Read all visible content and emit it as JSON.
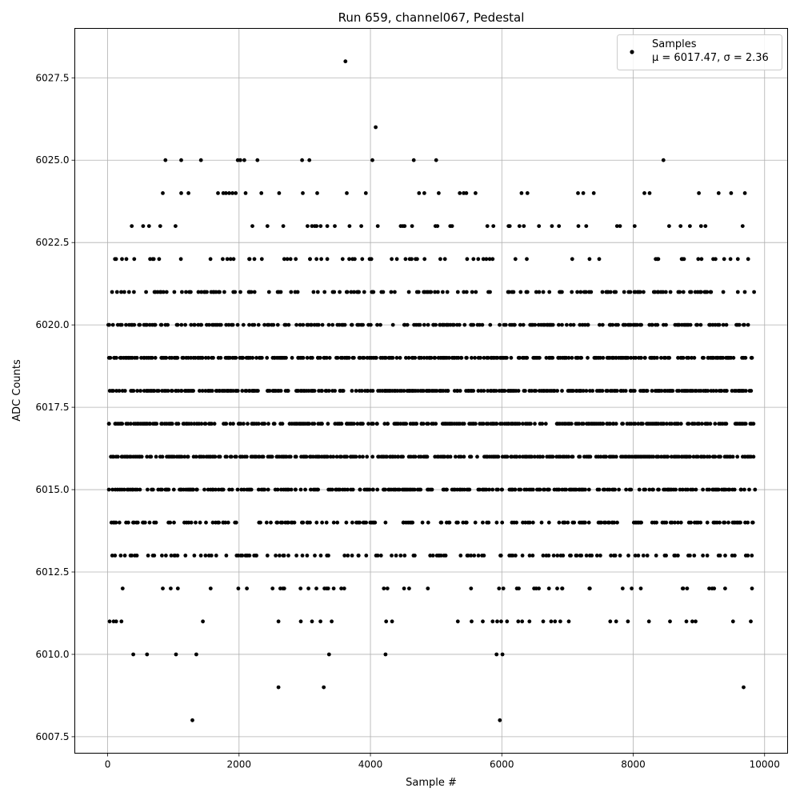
{
  "chart_data": {
    "type": "scatter",
    "title": "Run 659, channel067, Pedestal",
    "xlabel": "Sample #",
    "ylabel": "ADC Counts",
    "xlim": [
      -500,
      10350
    ],
    "ylim": [
      6007.0,
      6029.0
    ],
    "xticks": [
      0,
      2000,
      4000,
      6000,
      8000,
      10000
    ],
    "xtick_labels": [
      "0",
      "2000",
      "4000",
      "6000",
      "8000",
      "10000"
    ],
    "yticks": [
      6007.5,
      6010.0,
      6012.5,
      6015.0,
      6017.5,
      6020.0,
      6022.5,
      6025.0,
      6027.5
    ],
    "ytick_labels": [
      "6007.5",
      "6010.0",
      "6012.5",
      "6015.0",
      "6017.5",
      "6020.0",
      "6022.5",
      "6025.0",
      "6027.5"
    ],
    "grid": true,
    "legend": {
      "position": "top-right",
      "entries": [
        {
          "label": "Samples",
          "sublabel": "μ = 6017.47, σ = 2.36"
        }
      ]
    },
    "marker_color": "#000000",
    "sample_count": 9840,
    "levels": [
      {
        "y": 6016,
        "ranges": [
          [
            0,
            9840
          ]
        ],
        "density": 0.6
      },
      {
        "y": 6017,
        "ranges": [
          [
            0,
            9840
          ]
        ],
        "density": 0.6
      },
      {
        "y": 6018,
        "ranges": [
          [
            0,
            9840
          ]
        ],
        "density": 0.6
      },
      {
        "y": 6019,
        "ranges": [
          [
            0,
            9840
          ]
        ],
        "density": 0.6
      },
      {
        "y": 6015,
        "ranges": [
          [
            0,
            9840
          ]
        ],
        "density": 0.5
      },
      {
        "y": 6020,
        "ranges": [
          [
            0,
            5850
          ],
          [
            5950,
            9840
          ]
        ],
        "density": 0.45
      },
      {
        "y": 6014,
        "ranges": [
          [
            0,
            1950
          ],
          [
            2300,
            9840
          ]
        ],
        "density": 0.35
      },
      {
        "y": 6021,
        "ranges": [
          [
            0,
            5850
          ],
          [
            6000,
            9840
          ]
        ],
        "density": 0.3
      },
      {
        "y": 6013,
        "ranges": [
          [
            0,
            9840
          ]
        ],
        "density": 0.25
      },
      {
        "y": 6022,
        "ranges": [
          [
            0,
            9840
          ]
        ],
        "density": 0.15
      },
      {
        "y": 6023,
        "ranges": [
          [
            0,
            9840
          ]
        ],
        "density": 0.09
      },
      {
        "y": 6012,
        "ranges": [
          [
            0,
            9840
          ]
        ],
        "density": 0.08
      }
    ],
    "points": [
      {
        "x": 3620,
        "y": 6028
      },
      {
        "x": 4080,
        "y": 6026
      },
      {
        "x": 880,
        "y": 6025
      },
      {
        "x": 1120,
        "y": 6025
      },
      {
        "x": 1420,
        "y": 6025
      },
      {
        "x": 1980,
        "y": 6025
      },
      {
        "x": 2020,
        "y": 6025
      },
      {
        "x": 2080,
        "y": 6025
      },
      {
        "x": 2280,
        "y": 6025
      },
      {
        "x": 2960,
        "y": 6025
      },
      {
        "x": 3070,
        "y": 6025
      },
      {
        "x": 4030,
        "y": 6025
      },
      {
        "x": 4660,
        "y": 6025
      },
      {
        "x": 5000,
        "y": 6025
      },
      {
        "x": 8460,
        "y": 6025
      },
      {
        "x": 840,
        "y": 6024
      },
      {
        "x": 1120,
        "y": 6024
      },
      {
        "x": 1230,
        "y": 6024
      },
      {
        "x": 1680,
        "y": 6024
      },
      {
        "x": 1760,
        "y": 6024
      },
      {
        "x": 1800,
        "y": 6024
      },
      {
        "x": 1850,
        "y": 6024
      },
      {
        "x": 1900,
        "y": 6024
      },
      {
        "x": 1950,
        "y": 6024
      },
      {
        "x": 2100,
        "y": 6024
      },
      {
        "x": 2340,
        "y": 6024
      },
      {
        "x": 2610,
        "y": 6024
      },
      {
        "x": 2970,
        "y": 6024
      },
      {
        "x": 3190,
        "y": 6024
      },
      {
        "x": 3640,
        "y": 6024
      },
      {
        "x": 3930,
        "y": 6024
      },
      {
        "x": 4740,
        "y": 6024
      },
      {
        "x": 4820,
        "y": 6024
      },
      {
        "x": 5040,
        "y": 6024
      },
      {
        "x": 5360,
        "y": 6024
      },
      {
        "x": 5420,
        "y": 6024
      },
      {
        "x": 5460,
        "y": 6024
      },
      {
        "x": 5600,
        "y": 6024
      },
      {
        "x": 6300,
        "y": 6024
      },
      {
        "x": 6390,
        "y": 6024
      },
      {
        "x": 7160,
        "y": 6024
      },
      {
        "x": 7240,
        "y": 6024
      },
      {
        "x": 7400,
        "y": 6024
      },
      {
        "x": 8170,
        "y": 6024
      },
      {
        "x": 8250,
        "y": 6024
      },
      {
        "x": 9000,
        "y": 6024
      },
      {
        "x": 9300,
        "y": 6024
      },
      {
        "x": 9490,
        "y": 6024
      },
      {
        "x": 9700,
        "y": 6024
      },
      {
        "x": 30,
        "y": 6011
      },
      {
        "x": 90,
        "y": 6011
      },
      {
        "x": 130,
        "y": 6011
      },
      {
        "x": 210,
        "y": 6011
      },
      {
        "x": 1450,
        "y": 6011
      },
      {
        "x": 2600,
        "y": 6011
      },
      {
        "x": 2940,
        "y": 6011
      },
      {
        "x": 3110,
        "y": 6011
      },
      {
        "x": 3240,
        "y": 6011
      },
      {
        "x": 3410,
        "y": 6011
      },
      {
        "x": 4240,
        "y": 6011
      },
      {
        "x": 4330,
        "y": 6011
      },
      {
        "x": 5330,
        "y": 6011
      },
      {
        "x": 5540,
        "y": 6011
      },
      {
        "x": 5710,
        "y": 6011
      },
      {
        "x": 5860,
        "y": 6011
      },
      {
        "x": 5930,
        "y": 6011
      },
      {
        "x": 5990,
        "y": 6011
      },
      {
        "x": 6080,
        "y": 6011
      },
      {
        "x": 6250,
        "y": 6011
      },
      {
        "x": 6310,
        "y": 6011
      },
      {
        "x": 6420,
        "y": 6011
      },
      {
        "x": 6630,
        "y": 6011
      },
      {
        "x": 6750,
        "y": 6011
      },
      {
        "x": 6810,
        "y": 6011
      },
      {
        "x": 6890,
        "y": 6011
      },
      {
        "x": 7020,
        "y": 6011
      },
      {
        "x": 7650,
        "y": 6011
      },
      {
        "x": 7740,
        "y": 6011
      },
      {
        "x": 7920,
        "y": 6011
      },
      {
        "x": 8240,
        "y": 6011
      },
      {
        "x": 8560,
        "y": 6011
      },
      {
        "x": 8810,
        "y": 6011
      },
      {
        "x": 8900,
        "y": 6011
      },
      {
        "x": 8950,
        "y": 6011
      },
      {
        "x": 9520,
        "y": 6011
      },
      {
        "x": 9790,
        "y": 6011
      },
      {
        "x": 390,
        "y": 6010
      },
      {
        "x": 600,
        "y": 6010
      },
      {
        "x": 1040,
        "y": 6010
      },
      {
        "x": 1350,
        "y": 6010
      },
      {
        "x": 3370,
        "y": 6010
      },
      {
        "x": 4230,
        "y": 6010
      },
      {
        "x": 5920,
        "y": 6010
      },
      {
        "x": 6010,
        "y": 6010
      },
      {
        "x": 2600,
        "y": 6009
      },
      {
        "x": 3290,
        "y": 6009
      },
      {
        "x": 9680,
        "y": 6009
      },
      {
        "x": 1290,
        "y": 6008
      },
      {
        "x": 5970,
        "y": 6008
      }
    ]
  }
}
